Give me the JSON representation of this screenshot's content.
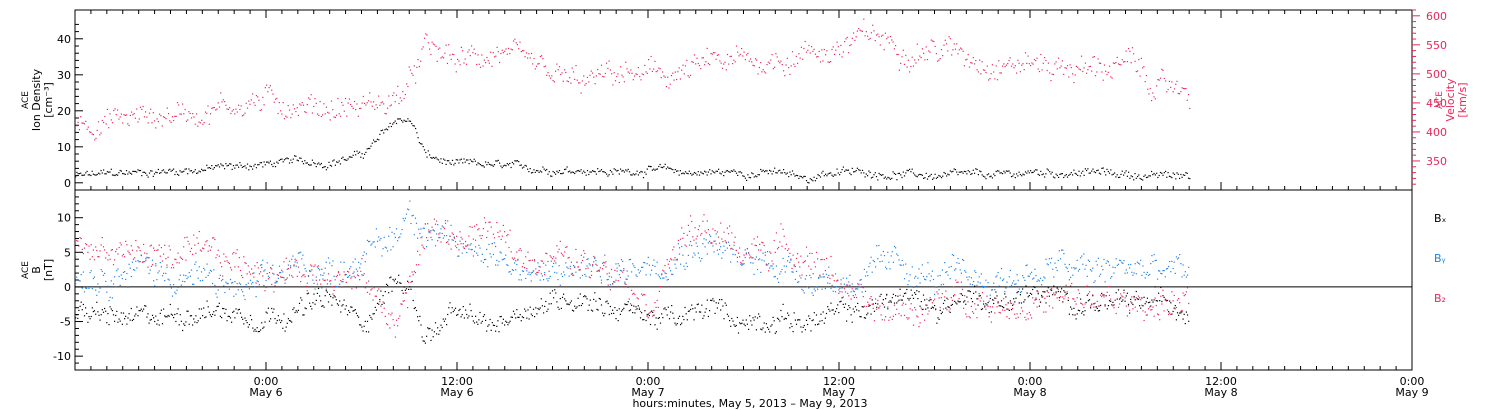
{
  "colors": {
    "black": "#000000",
    "pink": "#e8285a",
    "blue": "#1e82e6"
  },
  "xaxis": {
    "title": "hours:minutes,  May  5, 2013 – May  9, 2013",
    "tick_times": [
      "0:00",
      "12:00",
      "0:00",
      "12:00",
      "0:00",
      "12:00",
      "0:00"
    ],
    "tick_dates": [
      "May 6",
      "May 6",
      "May 7",
      "May 7",
      "May 8",
      "May 8",
      "May 9"
    ],
    "range_hours_from_may6_0000": [
      -12,
      72
    ],
    "data_end_hours_from_may6_0000": 58
  },
  "chart_data": [
    {
      "type": "scatter",
      "panel": "top",
      "left_axis": {
        "label_lines": [
          "ACE",
          "Ion Density",
          "[cm⁻³]"
        ],
        "ylim": [
          -2,
          48
        ],
        "ticks": [
          "0",
          "10",
          "20",
          "30",
          "40"
        ]
      },
      "right_axis": {
        "label_lines": [
          "ACE",
          "Velocity",
          "[km/s]"
        ],
        "ylim": [
          300,
          610
        ],
        "ticks": [
          "350",
          "400",
          "450",
          "500",
          "550",
          "600"
        ]
      },
      "series": [
        {
          "axis": "left",
          "color": "#000000",
          "points_hours_value": [
            [
              -12,
              2
            ],
            [
              -8,
              3
            ],
            [
              -4,
              4
            ],
            [
              -1,
              5
            ],
            [
              2,
              6
            ],
            [
              4,
              6
            ],
            [
              6,
              8
            ],
            [
              7,
              12
            ],
            [
              8,
              17
            ],
            [
              9,
              18
            ],
            [
              10,
              8
            ],
            [
              11,
              6
            ],
            [
              12,
              5
            ],
            [
              14,
              5
            ],
            [
              16,
              4
            ],
            [
              18,
              4
            ],
            [
              20,
              4
            ],
            [
              22,
              3
            ],
            [
              24,
              4
            ],
            [
              26,
              3
            ],
            [
              28,
              3
            ],
            [
              30,
              3
            ],
            [
              32,
              3
            ],
            [
              34,
              1
            ],
            [
              35,
              3
            ],
            [
              38,
              3
            ],
            [
              42,
              2
            ],
            [
              46,
              2
            ],
            [
              48,
              3
            ],
            [
              52,
              3
            ],
            [
              56,
              2
            ],
            [
              58,
              2
            ]
          ]
        },
        {
          "axis": "right",
          "color": "#e8285a",
          "points_hours_value": [
            [
              -12,
              420
            ],
            [
              -8,
              425
            ],
            [
              -4,
              440
            ],
            [
              -1,
              455
            ],
            [
              2,
              450
            ],
            [
              4,
              445
            ],
            [
              6,
              445
            ],
            [
              8,
              455
            ],
            [
              9,
              480
            ],
            [
              10,
              540
            ],
            [
              11,
              530
            ],
            [
              12,
              520
            ],
            [
              13,
              525
            ],
            [
              14,
              535
            ],
            [
              15,
              540
            ],
            [
              16,
              510
            ],
            [
              18,
              490
            ],
            [
              20,
              480
            ],
            [
              22,
              500
            ],
            [
              24,
              495
            ],
            [
              26,
              500
            ],
            [
              28,
              515
            ],
            [
              30,
              520
            ],
            [
              32,
              525
            ],
            [
              34,
              540
            ],
            [
              36,
              545
            ],
            [
              37,
              555
            ],
            [
              38,
              565
            ],
            [
              39,
              555
            ],
            [
              40,
              550
            ],
            [
              42,
              545
            ],
            [
              44,
              535
            ],
            [
              46,
              525
            ],
            [
              48,
              520
            ],
            [
              50,
              515
            ],
            [
              52,
              510
            ],
            [
              54,
              520
            ],
            [
              55,
              500
            ],
            [
              56,
              475
            ],
            [
              58,
              475
            ]
          ]
        }
      ]
    },
    {
      "type": "scatter",
      "panel": "bottom",
      "left_axis": {
        "label_lines": [
          "ACE",
          "B",
          "[nT]"
        ],
        "ylim": [
          -12,
          14
        ],
        "ticks": [
          "-10",
          "-5",
          "0",
          "5",
          "10"
        ]
      },
      "legend": [
        "Bₓ",
        "Bᵧ",
        "B₂"
      ],
      "series": [
        {
          "name": "Bₓ",
          "color": "#000000",
          "points_hours_value": [
            [
              -12,
              -4
            ],
            [
              -8,
              -5
            ],
            [
              -4,
              -3
            ],
            [
              -1,
              -4
            ],
            [
              2,
              -3
            ],
            [
              4,
              -2
            ],
            [
              6,
              -5
            ],
            [
              8,
              1
            ],
            [
              9,
              0
            ],
            [
              10,
              -7
            ],
            [
              12,
              -4
            ],
            [
              14,
              -6
            ],
            [
              16,
              -3
            ],
            [
              18,
              -2
            ],
            [
              20,
              -1
            ],
            [
              22,
              -3
            ],
            [
              24,
              -4
            ],
            [
              26,
              -5
            ],
            [
              28,
              -3
            ],
            [
              30,
              -5
            ],
            [
              32,
              -4
            ],
            [
              34,
              -5
            ],
            [
              36,
              -4
            ],
            [
              38,
              -3
            ],
            [
              40,
              -1
            ],
            [
              42,
              -3
            ],
            [
              44,
              -1
            ],
            [
              46,
              -2
            ],
            [
              48,
              -1
            ],
            [
              50,
              -2
            ],
            [
              52,
              -2
            ],
            [
              54,
              -3
            ],
            [
              56,
              -2
            ],
            [
              58,
              -3
            ]
          ]
        },
        {
          "name": "Bᵧ",
          "color": "#1e82e6",
          "points_hours_value": [
            [
              -12,
              2
            ],
            [
              -8,
              3
            ],
            [
              -4,
              1
            ],
            [
              -1,
              -1
            ],
            [
              2,
              3
            ],
            [
              4,
              2
            ],
            [
              6,
              5
            ],
            [
              8,
              7
            ],
            [
              9,
              12
            ],
            [
              10,
              9
            ],
            [
              12,
              5
            ],
            [
              14,
              6
            ],
            [
              16,
              3
            ],
            [
              18,
              1
            ],
            [
              20,
              3
            ],
            [
              22,
              2
            ],
            [
              24,
              4
            ],
            [
              26,
              6
            ],
            [
              28,
              7
            ],
            [
              30,
              3
            ],
            [
              32,
              4
            ],
            [
              34,
              2
            ],
            [
              36,
              1
            ],
            [
              38,
              2
            ],
            [
              40,
              3
            ],
            [
              42,
              1
            ],
            [
              44,
              1
            ],
            [
              46,
              1
            ],
            [
              48,
              2
            ],
            [
              50,
              3
            ],
            [
              52,
              2
            ],
            [
              54,
              3
            ],
            [
              56,
              2
            ],
            [
              58,
              2
            ]
          ]
        },
        {
          "name": "B₂",
          "color": "#e8285a",
          "points_hours_value": [
            [
              -12,
              6
            ],
            [
              -8,
              5
            ],
            [
              -4,
              4
            ],
            [
              -1,
              3
            ],
            [
              2,
              2
            ],
            [
              4,
              3
            ],
            [
              6,
              1
            ],
            [
              8,
              -5
            ],
            [
              9,
              0
            ],
            [
              10,
              8
            ],
            [
              12,
              7
            ],
            [
              14,
              8
            ],
            [
              16,
              4
            ],
            [
              18,
              5
            ],
            [
              20,
              3
            ],
            [
              22,
              4
            ],
            [
              24,
              -2
            ],
            [
              26,
              7
            ],
            [
              28,
              8
            ],
            [
              30,
              5
            ],
            [
              32,
              6
            ],
            [
              34,
              5
            ],
            [
              36,
              1
            ],
            [
              38,
              -4
            ],
            [
              40,
              -3
            ],
            [
              42,
              -3
            ],
            [
              44,
              -1
            ],
            [
              46,
              -2
            ],
            [
              48,
              -2
            ],
            [
              50,
              -2
            ],
            [
              52,
              -2
            ],
            [
              54,
              -3
            ],
            [
              56,
              -2
            ],
            [
              58,
              -2
            ]
          ]
        }
      ]
    }
  ]
}
